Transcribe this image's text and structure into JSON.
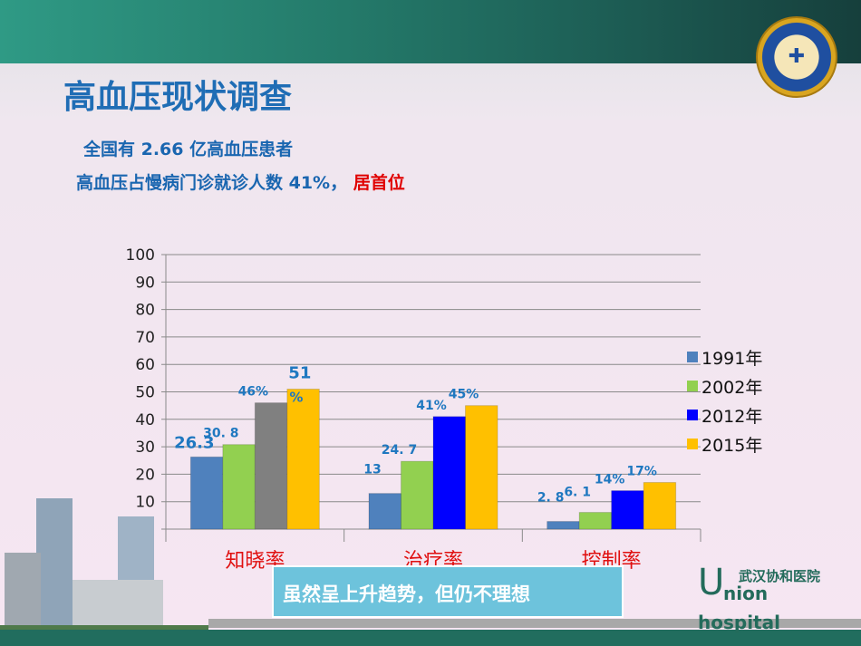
{
  "header": {
    "title": "高血压现状调查",
    "logo_text": "WUHAN UNION HOSPITAL OF CHINA"
  },
  "subtitle": {
    "line1": "全国有 2.66 亿高血压患者",
    "line2_main": "高血压占慢病门诊就诊人数 41%，",
    "line2_highlight": "居首位"
  },
  "callout": "虽然呈上升趋势，但仍不理想",
  "footer": {
    "cn_name": "武汉协和医院",
    "u": "U",
    "nion": "nion",
    "hospital": "hospital"
  },
  "chart_data": {
    "type": "bar",
    "title": "",
    "categories": [
      "知晓率",
      "治疗率",
      "控制率"
    ],
    "ylim": [
      0,
      100
    ],
    "yticks": [
      0,
      10,
      20,
      30,
      40,
      50,
      60,
      70,
      80,
      90,
      100
    ],
    "grid": true,
    "legend_position": "right",
    "series": [
      {
        "name": "1991年",
        "color": "#4f81bd",
        "values": [
          26.3,
          13,
          2.8
        ],
        "labels": [
          "26.3",
          "13",
          "2. 8"
        ]
      },
      {
        "name": "2002年",
        "color": "#92d050",
        "values": [
          30.8,
          24.7,
          6.1
        ],
        "labels": [
          "30. 8",
          "24. 7",
          "6. 1"
        ]
      },
      {
        "name": "2012年",
        "color": "#0000ff",
        "point_colors": [
          "#808080",
          "#0000ff",
          "#0000ff"
        ],
        "values": [
          46,
          41,
          14
        ],
        "labels": [
          "46%",
          "41%",
          "14%"
        ]
      },
      {
        "name": "2015年",
        "color": "#ffc000",
        "values": [
          51,
          45,
          17
        ],
        "labels": [
          "51 %",
          "45%",
          "17%"
        ]
      }
    ]
  }
}
